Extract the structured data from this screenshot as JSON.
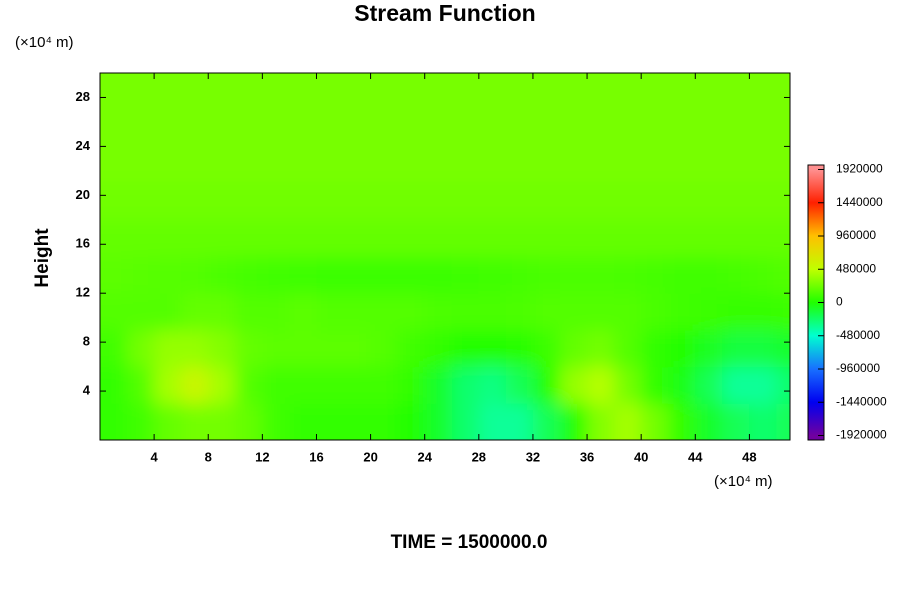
{
  "chart_data": {
    "type": "contour",
    "title": "Stream Function",
    "y_label": "Height",
    "x_unit": "(×10⁴ m)",
    "y_unit": "(×10⁴ m)",
    "footer": "TIME = 1500000.0",
    "xlim": [
      0,
      51
    ],
    "ylim": [
      0,
      30
    ],
    "xticks": [
      4,
      8,
      12,
      16,
      20,
      24,
      28,
      32,
      36,
      40,
      44,
      48
    ],
    "yticks": [
      4,
      8,
      12,
      16,
      20,
      24,
      28
    ],
    "x": [
      1,
      3,
      5,
      7,
      9,
      11,
      13,
      15,
      17,
      19,
      21,
      23,
      25,
      27,
      29,
      31,
      33,
      35,
      37,
      39,
      41,
      43,
      45,
      47,
      49,
      51
    ],
    "y": [
      1.5,
      4.5,
      7.5,
      10.5,
      13.5,
      16.5,
      19.5,
      22.5,
      25.5,
      28.5
    ],
    "z": [
      [
        50000,
        100000,
        200000,
        250000,
        250000,
        200000,
        100000,
        50000,
        50000,
        50000,
        50000,
        0,
        -100000,
        -250000,
        -350000,
        -350000,
        -200000,
        0,
        300000,
        400000,
        250000,
        50000,
        -100000,
        -200000,
        -250000,
        -200000
      ],
      [
        50000,
        150000,
        400000,
        550000,
        400000,
        150000,
        100000,
        100000,
        100000,
        100000,
        100000,
        50000,
        -100000,
        -250000,
        -300000,
        -200000,
        0,
        350000,
        450000,
        250000,
        50000,
        -50000,
        -200000,
        -350000,
        -350000,
        -250000
      ],
      [
        100000,
        250000,
        350000,
        350000,
        300000,
        200000,
        180000,
        180000,
        180000,
        180000,
        150000,
        100000,
        50000,
        0,
        0,
        20000,
        80000,
        200000,
        250000,
        150000,
        50000,
        0,
        -80000,
        -150000,
        -150000,
        -100000
      ],
      [
        150000,
        150000,
        150000,
        200000,
        200000,
        150000,
        150000,
        180000,
        150000,
        150000,
        150000,
        150000,
        130000,
        120000,
        120000,
        130000,
        150000,
        150000,
        150000,
        150000,
        120000,
        100000,
        80000,
        60000,
        60000,
        80000
      ],
      [
        180000,
        170000,
        160000,
        150000,
        130000,
        110000,
        100000,
        90000,
        80000,
        80000,
        80000,
        80000,
        80000,
        90000,
        100000,
        110000,
        120000,
        130000,
        130000,
        120000,
        110000,
        100000,
        100000,
        110000,
        130000,
        150000
      ],
      [
        200000,
        200000,
        200000,
        200000,
        200000,
        200000,
        200000,
        200000,
        200000,
        200000,
        200000,
        200000,
        200000,
        200000,
        200000,
        200000,
        200000,
        200000,
        200000,
        200000,
        200000,
        200000,
        200000,
        200000,
        200000,
        200000
      ],
      [
        240000,
        240000,
        240000,
        240000,
        240000,
        240000,
        240000,
        240000,
        240000,
        240000,
        240000,
        240000,
        240000,
        240000,
        240000,
        240000,
        240000,
        240000,
        240000,
        240000,
        240000,
        240000,
        240000,
        240000,
        240000,
        240000
      ],
      [
        260000,
        260000,
        260000,
        260000,
        260000,
        260000,
        260000,
        260000,
        260000,
        260000,
        260000,
        260000,
        260000,
        260000,
        260000,
        260000,
        260000,
        260000,
        260000,
        260000,
        260000,
        260000,
        260000,
        260000,
        260000,
        260000
      ],
      [
        260000,
        260000,
        260000,
        260000,
        260000,
        260000,
        260000,
        260000,
        260000,
        260000,
        260000,
        260000,
        260000,
        260000,
        260000,
        260000,
        260000,
        260000,
        260000,
        260000,
        260000,
        260000,
        260000,
        260000,
        260000,
        260000
      ],
      [
        260000,
        260000,
        260000,
        260000,
        260000,
        260000,
        260000,
        260000,
        260000,
        260000,
        260000,
        260000,
        260000,
        260000,
        260000,
        260000,
        260000,
        260000,
        260000,
        260000,
        260000,
        260000,
        260000,
        260000,
        260000,
        260000
      ]
    ],
    "clim": [
      -1985000,
      1985000
    ],
    "cticks": [
      -1920000,
      -1440000,
      -960000,
      -480000,
      0,
      480000,
      960000,
      1440000,
      1920000
    ],
    "ccolors": [
      "#7000a0",
      "#0000f0",
      "#1870ff",
      "#00ffd0",
      "#20ff00",
      "#c0ff00",
      "#ffc000",
      "#ff2000",
      "#ff9090"
    ]
  }
}
